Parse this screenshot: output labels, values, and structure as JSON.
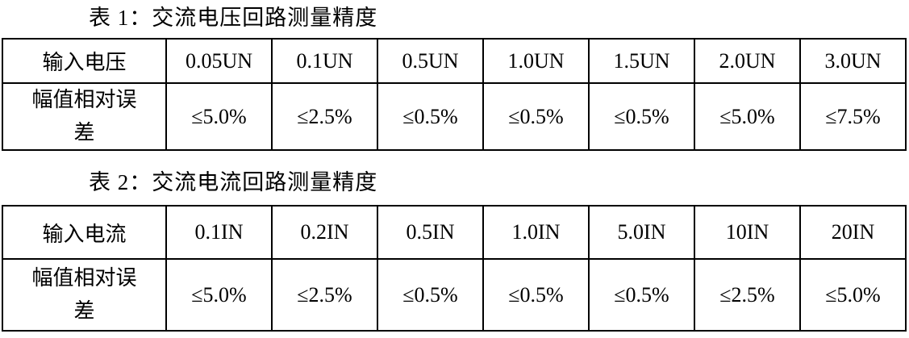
{
  "document": {
    "table1": {
      "title": "表 1：交流电压回路测量精度",
      "row1_header": "输入电压",
      "row2_header": "幅值相对误差",
      "levels": [
        "0.05UN",
        "0.1UN",
        "0.5UN",
        "1.0UN",
        "1.5UN",
        "2.0UN",
        "3.0UN"
      ],
      "errors": [
        "≤5.0%",
        "≤2.5%",
        "≤0.5%",
        "≤0.5%",
        "≤0.5%",
        "≤5.0%",
        "≤7.5%"
      ]
    },
    "table2": {
      "title": "表 2：交流电流回路测量精度",
      "row1_header": "输入电流",
      "row2_header": "幅值相对误差",
      "levels": [
        "0.1IN",
        "0.2IN",
        "0.5IN",
        "1.0IN",
        "5.0IN",
        "10IN",
        "20IN"
      ],
      "errors": [
        "≤5.0%",
        "≤2.5%",
        "≤0.5%",
        "≤0.5%",
        "≤0.5%",
        "≤2.5%",
        "≤5.0%"
      ]
    },
    "colors": {
      "text": "#000000",
      "border": "#000000",
      "background": "#ffffff"
    }
  }
}
